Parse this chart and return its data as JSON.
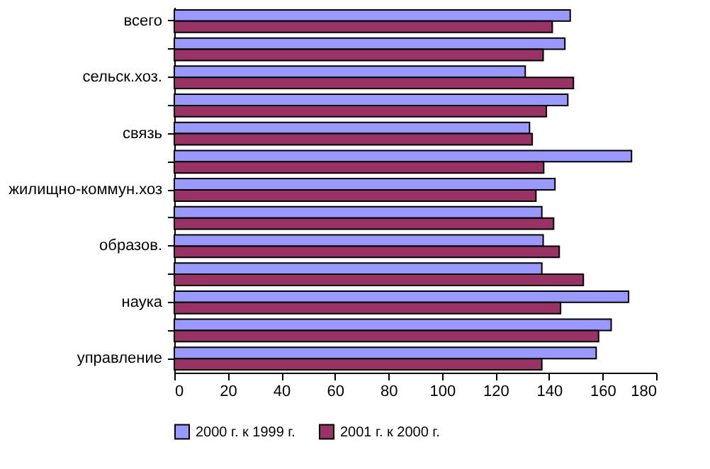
{
  "chart_data": {
    "type": "bar",
    "orientation": "horizontal",
    "categories": [
      "всего",
      null,
      "сельск.хоз.",
      null,
      "связь",
      null,
      "жилищно-коммун.хоз",
      null,
      "образов.",
      null,
      "наука",
      null,
      "управление"
    ],
    "series": [
      {
        "name": "2000 г. к 1999 г.",
        "color": "#9999ff",
        "values": [
          147.9,
          145.9,
          131.1,
          147,
          132.7,
          170.8,
          142.2,
          137.3,
          137.8,
          137.3,
          169.7,
          163.2,
          157.6
        ]
      },
      {
        "name": "2001 г. к 2000 г.",
        "color": "#993366",
        "values": [
          141.2,
          137.8,
          149.1,
          139,
          133.7,
          138,
          135.1,
          141.7,
          143.8,
          152.8,
          144.3,
          158.5,
          137.3
        ]
      }
    ],
    "xlim": [
      0,
      180
    ],
    "xticks": [
      0,
      20,
      40,
      60,
      80,
      100,
      120,
      140,
      160,
      180
    ],
    "grid": false,
    "legend": "bottom"
  }
}
